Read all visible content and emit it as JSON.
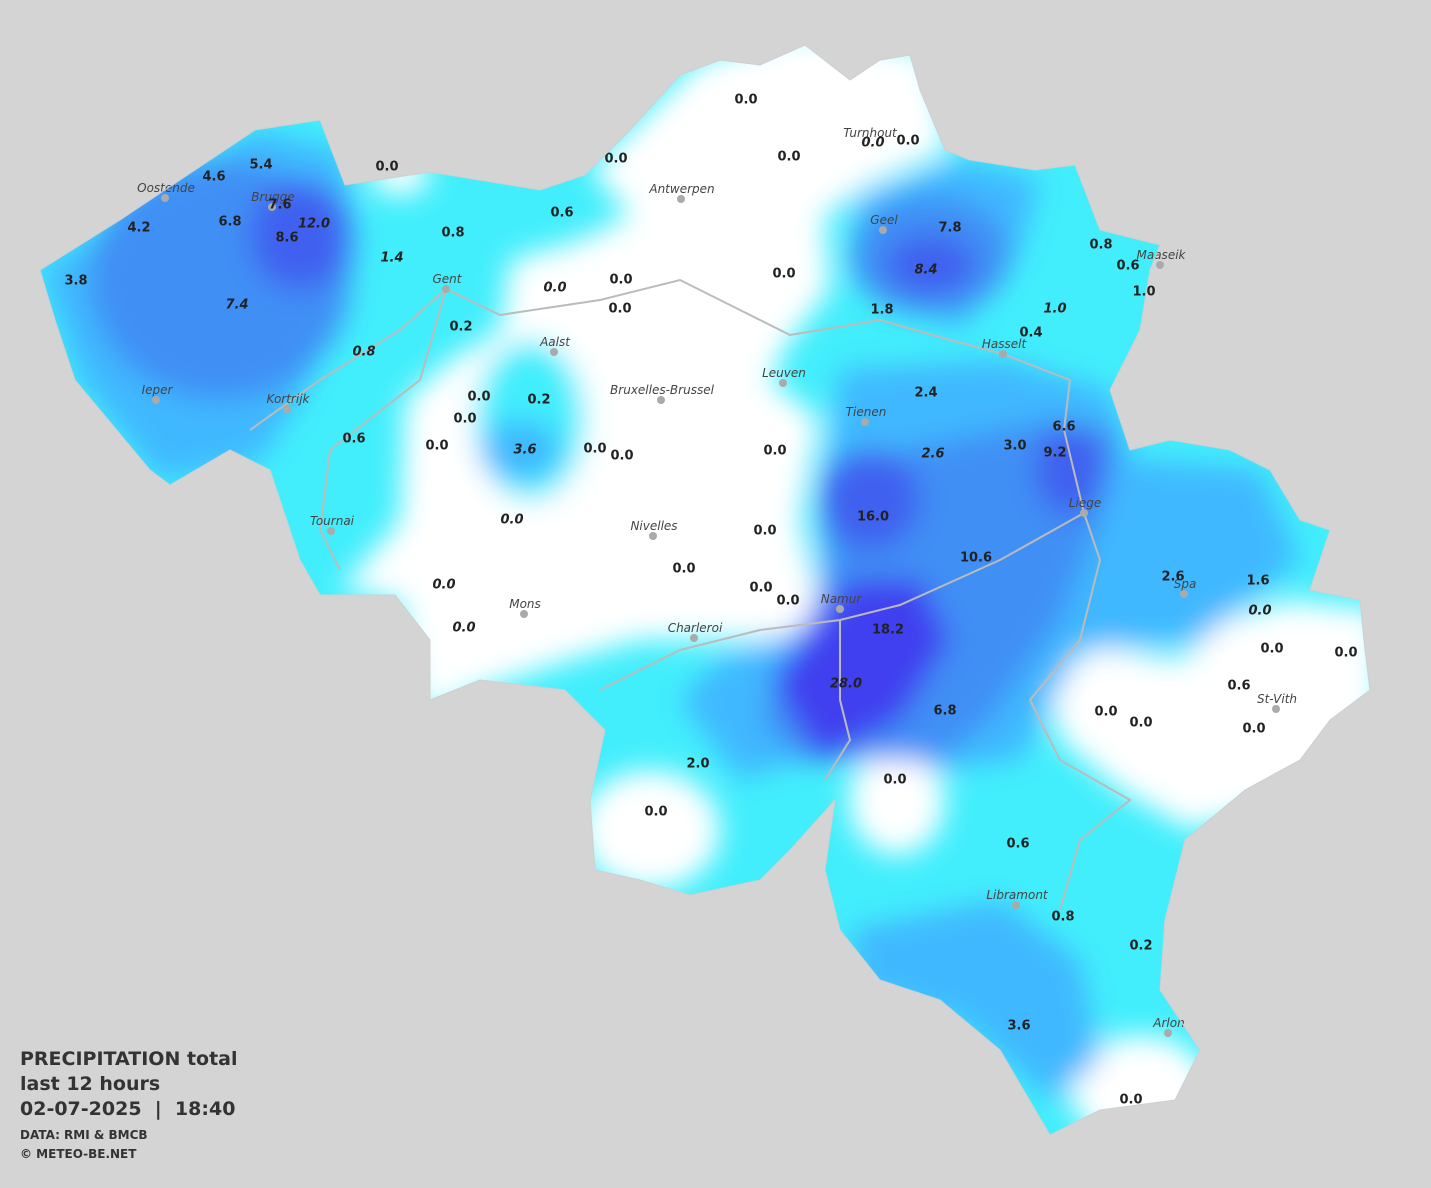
{
  "legend": {
    "title": "PRECIPITATION total",
    "period": "last 12 hours",
    "timestamp": "02-07-2025  |  18:40",
    "source": "DATA: RMI & BMCB",
    "copyright": "© METEO-BE.NET"
  },
  "cities": [
    "Oostende",
    "Brugge",
    "Gent",
    "Antwerpen",
    "Turnhout",
    "Geel",
    "Maaseik",
    "Hasselt",
    "Aalst",
    "Leuven",
    "Bruxelles-Brussel",
    "Tienen",
    "Ieper",
    "Kortrijk",
    "Tournai",
    "Nivelles",
    "Liege",
    "Namur",
    "Mons",
    "Charleroi",
    "Spa",
    "St-Vith",
    "Libramont",
    "Arlon"
  ],
  "readings": [
    {
      "text": "0.0",
      "italic": false
    },
    {
      "text": "0.0",
      "italic": false
    },
    {
      "text": "0.0",
      "italic": true
    },
    {
      "text": "0.0",
      "italic": false
    },
    {
      "text": "0.0",
      "italic": false
    },
    {
      "text": "0.0",
      "italic": false
    },
    {
      "text": "5.4",
      "italic": false
    },
    {
      "text": "4.6",
      "italic": false
    },
    {
      "text": "7.6",
      "italic": false
    },
    {
      "text": "6.8",
      "italic": false
    },
    {
      "text": "12.0",
      "italic": true
    },
    {
      "text": "8.6",
      "italic": false
    },
    {
      "text": "4.2",
      "italic": false
    },
    {
      "text": "3.8",
      "italic": false
    },
    {
      "text": "7.4",
      "italic": true
    },
    {
      "text": "0.8",
      "italic": false
    },
    {
      "text": "0.6",
      "italic": false
    },
    {
      "text": "1.4",
      "italic": true
    },
    {
      "text": "0.0",
      "italic": false
    },
    {
      "text": "0.0",
      "italic": true
    },
    {
      "text": "0.0",
      "italic": false
    },
    {
      "text": "0.0",
      "italic": false
    },
    {
      "text": "0.2",
      "italic": false
    },
    {
      "text": "0.8",
      "italic": true
    },
    {
      "text": "7.8",
      "italic": false
    },
    {
      "text": "8.4",
      "italic": true
    },
    {
      "text": "0.8",
      "italic": false
    },
    {
      "text": "0.6",
      "italic": false
    },
    {
      "text": "1.0",
      "italic": false
    },
    {
      "text": "1.0",
      "italic": true
    },
    {
      "text": "0.4",
      "italic": false
    },
    {
      "text": "1.8",
      "italic": false
    },
    {
      "text": "0.0",
      "italic": false
    },
    {
      "text": "0.0",
      "italic": false
    },
    {
      "text": "0.2",
      "italic": false
    },
    {
      "text": "0.0",
      "italic": false
    },
    {
      "text": "3.6",
      "italic": true
    },
    {
      "text": "0.0",
      "italic": false
    },
    {
      "text": "0.0",
      "italic": false
    },
    {
      "text": "0.6",
      "italic": false
    },
    {
      "text": "2.4",
      "italic": false
    },
    {
      "text": "2.6",
      "italic": true
    },
    {
      "text": "3.0",
      "italic": false
    },
    {
      "text": "6.6",
      "italic": false
    },
    {
      "text": "9.2",
      "italic": false
    },
    {
      "text": "0.0",
      "italic": false
    },
    {
      "text": "0.0",
      "italic": true
    },
    {
      "text": "16.0",
      "italic": false
    },
    {
      "text": "0.0",
      "italic": false
    },
    {
      "text": "10.6",
      "italic": false
    },
    {
      "text": "0.0",
      "italic": false
    },
    {
      "text": "0.0",
      "italic": true
    },
    {
      "text": "0.0",
      "italic": false
    },
    {
      "text": "0.0",
      "italic": false
    },
    {
      "text": "0.0",
      "italic": true
    },
    {
      "text": "18.2",
      "italic": false
    },
    {
      "text": "28.0",
      "italic": true
    },
    {
      "text": "6.8",
      "italic": false
    },
    {
      "text": "2.6",
      "italic": false
    },
    {
      "text": "1.6",
      "italic": false
    },
    {
      "text": "0.0",
      "italic": true
    },
    {
      "text": "0.0",
      "italic": false
    },
    {
      "text": "0.0",
      "italic": false
    },
    {
      "text": "0.6",
      "italic": false
    },
    {
      "text": "0.0",
      "italic": false
    },
    {
      "text": "0.0",
      "italic": false
    },
    {
      "text": "0.0",
      "italic": false
    },
    {
      "text": "2.0",
      "italic": false
    },
    {
      "text": "0.0",
      "italic": false
    },
    {
      "text": "0.0",
      "italic": false
    },
    {
      "text": "0.6",
      "italic": false
    },
    {
      "text": "0.8",
      "italic": false
    },
    {
      "text": "0.2",
      "italic": false
    },
    {
      "text": "3.6",
      "italic": false
    },
    {
      "text": "0.0",
      "italic": false
    }
  ]
}
